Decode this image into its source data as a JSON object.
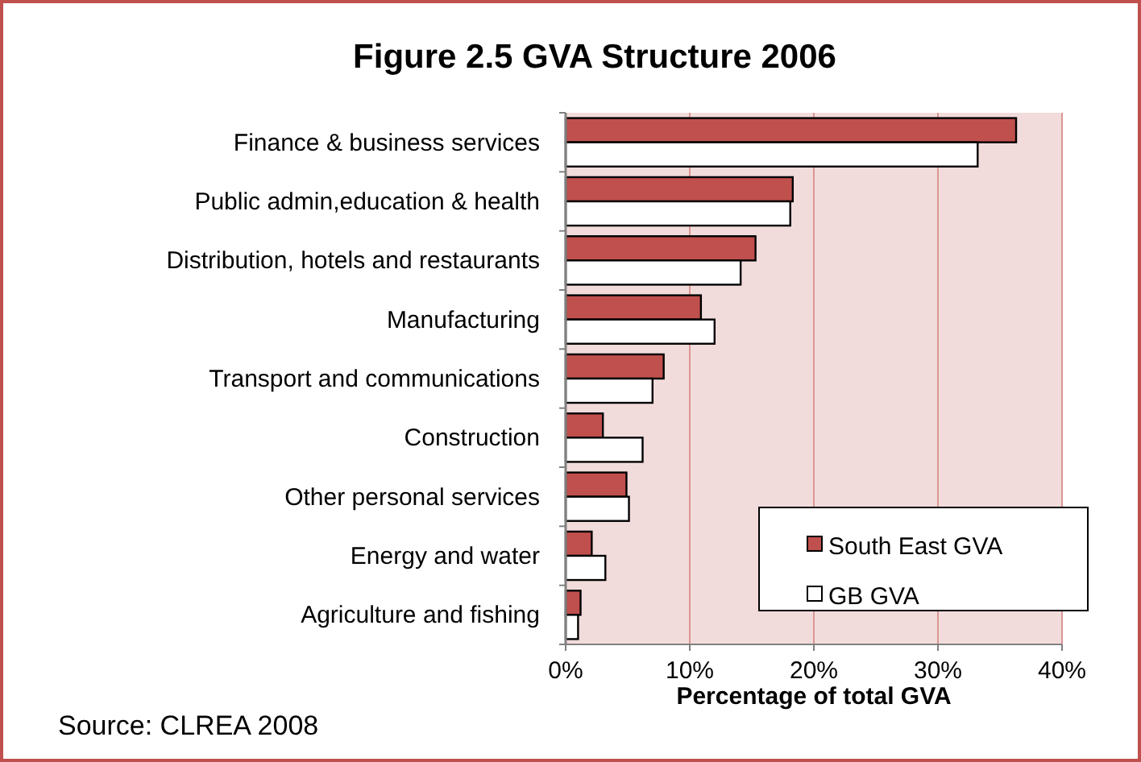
{
  "chart_data": {
    "type": "bar",
    "orientation": "horizontal",
    "title": "Figure 2.5 GVA Structure 2006",
    "xlabel": "Percentage  of total  GVA",
    "annotations": [
      "Source: CLREA 2008"
    ],
    "categories": [
      "Finance & business services",
      "Public admin,education & health",
      "Distribution, hotels and restaurants",
      "Manufacturing",
      "Transport and communications",
      "Construction",
      "Other personal services",
      "Energy and water",
      "Agriculture and fishing"
    ],
    "series": [
      {
        "name": "South East GVA",
        "color": "#c0504d",
        "values": [
          36.3,
          18.3,
          15.3,
          10.9,
          7.9,
          3.0,
          4.9,
          2.1,
          1.2
        ]
      },
      {
        "name": "GB GVA",
        "color": "#ffffff",
        "values": [
          33.2,
          18.1,
          14.1,
          12.0,
          7.0,
          6.2,
          5.1,
          3.2,
          1.0
        ]
      }
    ],
    "xlim": [
      0,
      40
    ],
    "xticks": [
      {
        "value": 0,
        "label": "0%"
      },
      {
        "value": 10,
        "label": "10%"
      },
      {
        "value": 20,
        "label": "20%"
      },
      {
        "value": 30,
        "label": "30%"
      },
      {
        "value": 40,
        "label": "40%"
      }
    ],
    "grid": "x",
    "legend": "bottom right"
  }
}
